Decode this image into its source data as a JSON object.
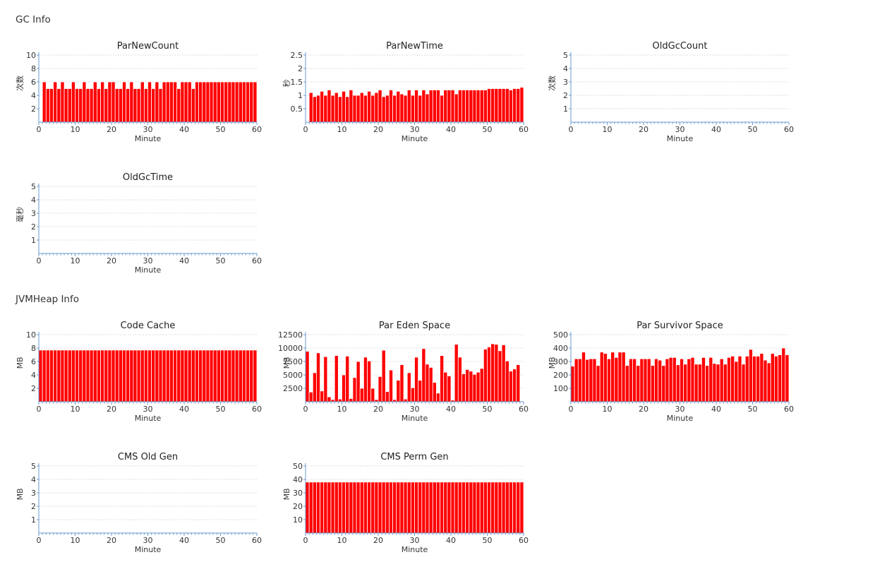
{
  "sections": {
    "gc": {
      "title": "GC Info"
    },
    "heap": {
      "title": "JVMHeap Info"
    }
  },
  "colors": {
    "bar": "#ff0000",
    "axis": "#6a9bd1",
    "grid": "#c8c8d0"
  },
  "chart_data": [
    {
      "id": "parnewcount",
      "type": "bar",
      "title": "ParNewCount",
      "xlabel": "Minute",
      "ylabel": "次数",
      "ylim": [
        0,
        10
      ],
      "yticks": [
        2,
        4,
        6,
        8,
        10
      ],
      "xlim": [
        0,
        60
      ],
      "xticks": [
        0,
        10,
        20,
        30,
        40,
        50,
        60
      ],
      "x": [
        1,
        2,
        3,
        4,
        5,
        6,
        7,
        8,
        9,
        10,
        11,
        12,
        13,
        14,
        15,
        16,
        17,
        18,
        19,
        20,
        21,
        22,
        23,
        24,
        25,
        26,
        27,
        28,
        29,
        30,
        31,
        32,
        33,
        34,
        35,
        36,
        37,
        38,
        39,
        40,
        41,
        42,
        43,
        44,
        45,
        46,
        47,
        48,
        49,
        50,
        51,
        52,
        53,
        54,
        55,
        56,
        57,
        58,
        59
      ],
      "values": [
        6,
        5,
        5,
        6,
        5,
        6,
        5,
        5,
        6,
        5,
        5,
        6,
        5,
        5,
        6,
        5,
        6,
        5,
        6,
        6,
        5,
        5,
        6,
        5,
        6,
        5,
        5,
        6,
        5,
        6,
        5,
        6,
        5,
        6,
        6,
        6,
        6,
        5,
        6,
        6,
        6,
        5,
        6,
        6,
        6,
        6,
        6,
        6,
        6,
        6,
        6,
        6,
        6,
        6,
        6,
        6,
        6,
        6,
        6
      ]
    },
    {
      "id": "parnewtime",
      "type": "bar",
      "title": "ParNewTime",
      "xlabel": "Minute",
      "ylabel": "秒",
      "ylim": [
        0,
        2.5
      ],
      "yticks": [
        0.5,
        1,
        1.5,
        2,
        2.5
      ],
      "xlim": [
        0,
        60
      ],
      "xticks": [
        0,
        10,
        20,
        30,
        40,
        50,
        60
      ],
      "x": [
        1,
        2,
        3,
        4,
        5,
        6,
        7,
        8,
        9,
        10,
        11,
        12,
        13,
        14,
        15,
        16,
        17,
        18,
        19,
        20,
        21,
        22,
        23,
        24,
        25,
        26,
        27,
        28,
        29,
        30,
        31,
        32,
        33,
        34,
        35,
        36,
        37,
        38,
        39,
        40,
        41,
        42,
        43,
        44,
        45,
        46,
        47,
        48,
        49,
        50,
        51,
        52,
        53,
        54,
        55,
        56,
        57,
        58,
        59
      ],
      "values": [
        1.1,
        0.95,
        1.0,
        1.15,
        1.0,
        1.2,
        1.0,
        1.1,
        0.95,
        1.15,
        0.95,
        1.2,
        1.0,
        1.0,
        1.1,
        1.0,
        1.15,
        1.0,
        1.1,
        1.2,
        0.95,
        1.0,
        1.2,
        1.0,
        1.15,
        1.05,
        1.0,
        1.2,
        1.0,
        1.2,
        1.0,
        1.2,
        1.05,
        1.2,
        1.2,
        1.2,
        1.0,
        1.2,
        1.2,
        1.2,
        1.05,
        1.2,
        1.2,
        1.2,
        1.2,
        1.2,
        1.2,
        1.2,
        1.2,
        1.25,
        1.25,
        1.25,
        1.25,
        1.25,
        1.25,
        1.2,
        1.25,
        1.25,
        1.3
      ]
    },
    {
      "id": "oldgccount",
      "type": "bar",
      "title": "OldGcCount",
      "xlabel": "Minute",
      "ylabel": "次数",
      "ylim": [
        0,
        5
      ],
      "yticks": [
        1,
        2,
        3,
        4,
        5
      ],
      "xlim": [
        0,
        60
      ],
      "xticks": [
        0,
        10,
        20,
        30,
        40,
        50,
        60
      ],
      "x": [],
      "values": []
    },
    {
      "id": "oldgctime",
      "type": "bar",
      "title": "OldGcTime",
      "xlabel": "Minute",
      "ylabel": "毫秒",
      "ylim": [
        0,
        5
      ],
      "yticks": [
        1,
        2,
        3,
        4,
        5
      ],
      "xlim": [
        0,
        60
      ],
      "xticks": [
        0,
        10,
        20,
        30,
        40,
        50,
        60
      ],
      "x": [],
      "values": []
    },
    {
      "id": "codecache",
      "type": "bar",
      "title": "Code Cache",
      "xlabel": "Minute",
      "ylabel": "MB",
      "ylim": [
        0,
        10
      ],
      "yticks": [
        2,
        4,
        6,
        8,
        10
      ],
      "xlim": [
        0,
        60
      ],
      "xticks": [
        0,
        10,
        20,
        30,
        40,
        50,
        60
      ],
      "x": [
        0,
        1,
        2,
        3,
        4,
        5,
        6,
        7,
        8,
        9,
        10,
        11,
        12,
        13,
        14,
        15,
        16,
        17,
        18,
        19,
        20,
        21,
        22,
        23,
        24,
        25,
        26,
        27,
        28,
        29,
        30,
        31,
        32,
        33,
        34,
        35,
        36,
        37,
        38,
        39,
        40,
        41,
        42,
        43,
        44,
        45,
        46,
        47,
        48,
        49,
        50,
        51,
        52,
        53,
        54,
        55,
        56,
        57,
        58,
        59
      ],
      "values": [
        7.7,
        7.7,
        7.7,
        7.7,
        7.7,
        7.7,
        7.7,
        7.7,
        7.7,
        7.7,
        7.7,
        7.7,
        7.7,
        7.7,
        7.7,
        7.7,
        7.7,
        7.7,
        7.7,
        7.7,
        7.7,
        7.7,
        7.7,
        7.7,
        7.7,
        7.7,
        7.7,
        7.7,
        7.7,
        7.7,
        7.7,
        7.7,
        7.7,
        7.7,
        7.7,
        7.7,
        7.7,
        7.7,
        7.7,
        7.7,
        7.7,
        7.7,
        7.7,
        7.7,
        7.7,
        7.7,
        7.7,
        7.7,
        7.7,
        7.7,
        7.7,
        7.7,
        7.7,
        7.7,
        7.7,
        7.7,
        7.7,
        7.7,
        7.7,
        7.7
      ]
    },
    {
      "id": "pareden",
      "type": "bar",
      "title": "Par Eden Space",
      "xlabel": "Minute",
      "ylabel": "MB",
      "ylim": [
        0,
        12500
      ],
      "yticks": [
        2500,
        5000,
        7500,
        10000,
        12500
      ],
      "xlim": [
        0,
        60
      ],
      "xticks": [
        0,
        10,
        20,
        30,
        40,
        50,
        60
      ],
      "x": [
        0,
        1,
        2,
        3,
        4,
        5,
        6,
        7,
        8,
        9,
        10,
        11,
        12,
        13,
        14,
        15,
        16,
        17,
        18,
        19,
        20,
        21,
        22,
        23,
        24,
        25,
        26,
        27,
        28,
        29,
        30,
        31,
        32,
        33,
        34,
        35,
        36,
        37,
        38,
        39,
        40,
        41,
        42,
        43,
        44,
        45,
        46,
        47,
        48,
        49,
        50,
        51,
        52,
        53,
        54,
        55,
        56,
        57,
        58,
        59
      ],
      "values": [
        9400,
        1800,
        5400,
        9100,
        2000,
        8400,
        900,
        400,
        8600,
        500,
        5000,
        8500,
        600,
        4500,
        7500,
        2500,
        8300,
        7600,
        2500,
        400,
        4700,
        9600,
        1900,
        5900,
        400,
        4000,
        6900,
        500,
        5400,
        2600,
        8300,
        4000,
        9900,
        7000,
        6400,
        3600,
        1600,
        8600,
        5500,
        4800,
        300,
        10700,
        8300,
        5200,
        6000,
        5700,
        5100,
        5500,
        6200,
        9800,
        10200,
        10800,
        10700,
        9500,
        10600,
        7600,
        5700,
        6100,
        6900,
        0
      ]
    },
    {
      "id": "parsurvivor",
      "type": "bar",
      "title": "Par Survivor Space",
      "xlabel": "Minute",
      "ylabel": "MB",
      "ylim": [
        0,
        500
      ],
      "yticks": [
        100,
        200,
        300,
        400,
        500
      ],
      "xlim": [
        0,
        60
      ],
      "xticks": [
        0,
        10,
        20,
        30,
        40,
        50,
        60
      ],
      "x": [
        0,
        1,
        2,
        3,
        4,
        5,
        6,
        7,
        8,
        9,
        10,
        11,
        12,
        13,
        14,
        15,
        16,
        17,
        18,
        19,
        20,
        21,
        22,
        23,
        24,
        25,
        26,
        27,
        28,
        29,
        30,
        31,
        32,
        33,
        34,
        35,
        36,
        37,
        38,
        39,
        40,
        41,
        42,
        43,
        44,
        45,
        46,
        47,
        48,
        49,
        50,
        51,
        52,
        53,
        54,
        55,
        56,
        57,
        58,
        59
      ],
      "values": [
        265,
        320,
        320,
        370,
        315,
        320,
        320,
        270,
        370,
        360,
        320,
        370,
        330,
        370,
        370,
        270,
        320,
        320,
        270,
        320,
        320,
        320,
        270,
        320,
        310,
        270,
        320,
        330,
        330,
        275,
        320,
        280,
        320,
        330,
        280,
        280,
        330,
        270,
        330,
        285,
        280,
        320,
        280,
        330,
        340,
        300,
        340,
        280,
        340,
        390,
        340,
        340,
        360,
        310,
        290,
        360,
        340,
        350,
        400,
        350
      ]
    },
    {
      "id": "cmsold",
      "type": "bar",
      "title": "CMS Old Gen",
      "xlabel": "Minute",
      "ylabel": "MB",
      "ylim": [
        0,
        5
      ],
      "yticks": [
        1,
        2,
        3,
        4,
        5
      ],
      "xlim": [
        0,
        60
      ],
      "xticks": [
        0,
        10,
        20,
        30,
        40,
        50,
        60
      ],
      "x": [],
      "values": []
    },
    {
      "id": "cmsperm",
      "type": "bar",
      "title": "CMS Perm Gen",
      "xlabel": "Minute",
      "ylabel": "MB",
      "ylim": [
        0,
        50
      ],
      "yticks": [
        10,
        20,
        30,
        40,
        50
      ],
      "xlim": [
        0,
        60
      ],
      "xticks": [
        0,
        10,
        20,
        30,
        40,
        50,
        60
      ],
      "x": [
        0,
        1,
        2,
        3,
        4,
        5,
        6,
        7,
        8,
        9,
        10,
        11,
        12,
        13,
        14,
        15,
        16,
        17,
        18,
        19,
        20,
        21,
        22,
        23,
        24,
        25,
        26,
        27,
        28,
        29,
        30,
        31,
        32,
        33,
        34,
        35,
        36,
        37,
        38,
        39,
        40,
        41,
        42,
        43,
        44,
        45,
        46,
        47,
        48,
        49,
        50,
        51,
        52,
        53,
        54,
        55,
        56,
        57,
        58,
        59
      ],
      "values": [
        38,
        38,
        38,
        38,
        38,
        38,
        38,
        38,
        38,
        38,
        38,
        38,
        38,
        38,
        38,
        38,
        38,
        38,
        38,
        38,
        38,
        38,
        38,
        38,
        38,
        38,
        38,
        38,
        38,
        38,
        38,
        38,
        38,
        38,
        38,
        38,
        38,
        38,
        38,
        38,
        38,
        38,
        38,
        38,
        38,
        38,
        38,
        38,
        38,
        38,
        38,
        38,
        38,
        38,
        38,
        38,
        38,
        38,
        38,
        38
      ]
    }
  ]
}
